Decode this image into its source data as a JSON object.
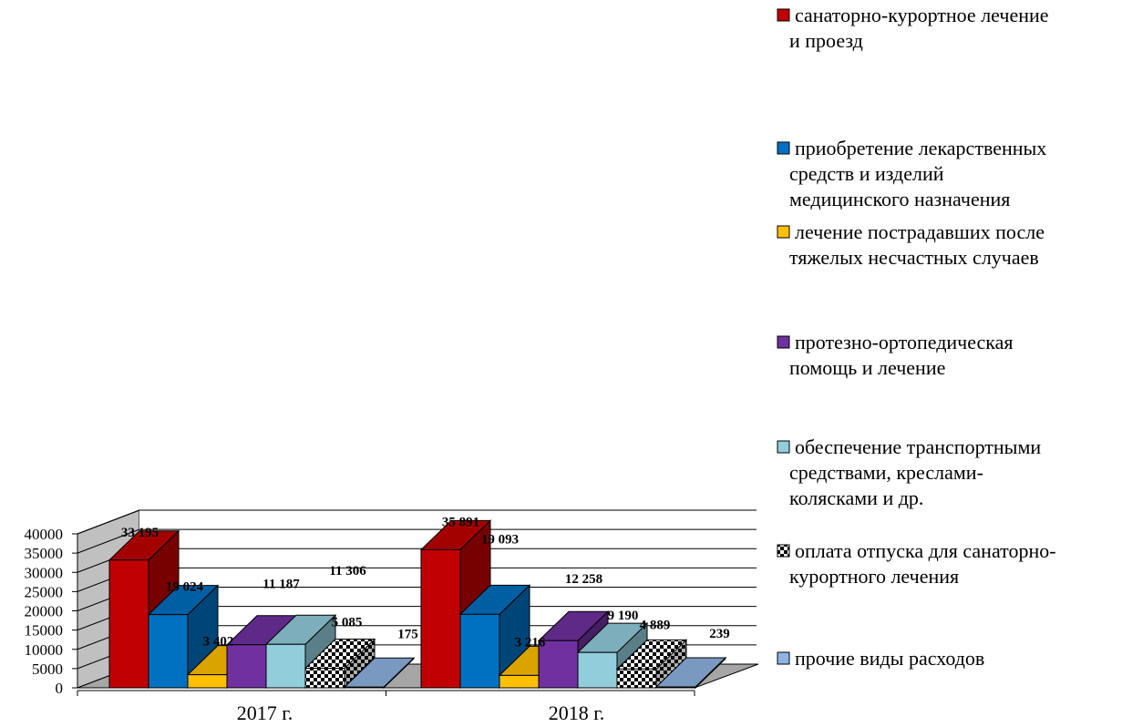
{
  "chart_data": {
    "type": "bar",
    "title": "",
    "xlabel": "",
    "ylabel": "",
    "categories": [
      "2017 г.",
      "2018 г."
    ],
    "ylim": [
      0,
      40000
    ],
    "yticks": [
      0,
      5000,
      10000,
      15000,
      20000,
      25000,
      30000,
      35000,
      40000
    ],
    "grid": true,
    "legend_position": "right",
    "series": [
      {
        "name": [
          "санаторно-курортное лечение",
          "и проезд"
        ],
        "values": [
          33195,
          35891
        ],
        "labels": [
          "33 195",
          "35 891"
        ],
        "color": "#c00000",
        "pattern": "solid"
      },
      {
        "name": [
          "приобретение лекарственных",
          "средств и изделий",
          "медицинского назначения"
        ],
        "values": [
          19024,
          19093
        ],
        "labels": [
          "19 024",
          "19 093"
        ],
        "color": "#0070c0",
        "pattern": "solid"
      },
      {
        "name": [
          "лечение пострадавших после",
          "тяжелых несчастных случаев"
        ],
        "values": [
          3402,
          3216
        ],
        "labels": [
          "3 402",
          "3 216"
        ],
        "color": "#ffc000",
        "pattern": "solid"
      },
      {
        "name": [
          "протезно-ортопедическая",
          "помощь и  лечение"
        ],
        "values": [
          11187,
          12258
        ],
        "labels": [
          "11 187",
          "12 258"
        ],
        "color": "#7030a0",
        "pattern": "solid"
      },
      {
        "name": [
          "обеспечение транспортными",
          "средствами, креслами-",
          "колясками и др."
        ],
        "values": [
          11306,
          9190
        ],
        "labels": [
          "11 306",
          "9 190"
        ],
        "color": "#92cddc",
        "pattern": "solid"
      },
      {
        "name": [
          "оплата отпуска для санаторно-",
          "курортного лечения"
        ],
        "values": [
          5085,
          4889
        ],
        "labels": [
          "5 085",
          "4 889"
        ],
        "color": "#000000",
        "pattern": "checker"
      },
      {
        "name": [
          "прочие виды расходов"
        ],
        "values": [
          175,
          239
        ],
        "labels": [
          "175",
          "239"
        ],
        "color": "#8eb4e3",
        "pattern": "solid"
      }
    ]
  }
}
